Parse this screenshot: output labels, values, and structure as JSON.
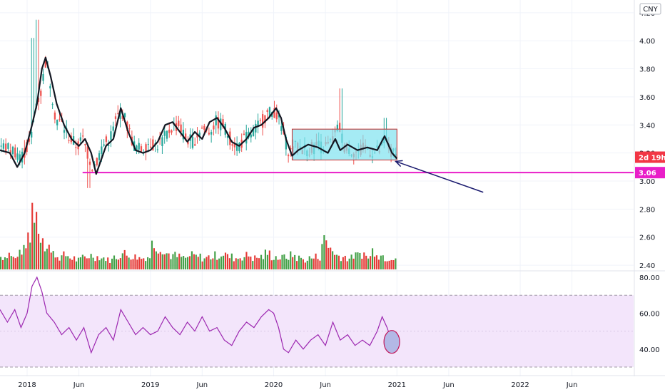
{
  "chart_data": [
    {
      "type": "candlestick",
      "currency": "CNY",
      "ylim": [
        2.38,
        4.25
      ],
      "yticks": [
        {
          "value": 4.2,
          "label": "4.20"
        },
        {
          "value": 4.0,
          "label": "4.00"
        },
        {
          "value": 3.8,
          "label": "3.80"
        },
        {
          "value": 3.6,
          "label": "3.60"
        },
        {
          "value": 3.4,
          "label": "3.40"
        },
        {
          "value": 3.2,
          "label": "3.20"
        },
        {
          "value": 3.0,
          "label": "3.00"
        },
        {
          "value": 2.8,
          "label": "2.80"
        },
        {
          "value": 2.6,
          "label": "2.60"
        },
        {
          "value": 2.4,
          "label": "2.40"
        }
      ],
      "xlim": [
        2017.78,
        2022.92
      ],
      "xticks": [
        {
          "value": 2018.0,
          "label": "2018"
        },
        {
          "value": 2018.42,
          "label": "Jun"
        },
        {
          "value": 2019.0,
          "label": "2019"
        },
        {
          "value": 2019.42,
          "label": "Jun"
        },
        {
          "value": 2020.0,
          "label": "2020"
        },
        {
          "value": 2020.42,
          "label": "Jun"
        },
        {
          "value": 2021.0,
          "label": "2021"
        },
        {
          "value": 2021.42,
          "label": "Jun"
        },
        {
          "value": 2022.0,
          "label": "2022"
        },
        {
          "value": 2022.42,
          "label": "Jun"
        }
      ],
      "price_path": [
        [
          2017.78,
          3.25
        ],
        [
          2017.88,
          3.22
        ],
        [
          2017.95,
          3.18
        ],
        [
          2018.02,
          3.28
        ],
        [
          2018.06,
          3.55
        ],
        [
          2018.1,
          3.62
        ],
        [
          2018.14,
          3.85
        ],
        [
          2018.18,
          3.7
        ],
        [
          2018.22,
          3.45
        ],
        [
          2018.28,
          3.4
        ],
        [
          2018.34,
          3.3
        ],
        [
          2018.4,
          3.25
        ],
        [
          2018.44,
          3.3
        ],
        [
          2018.48,
          3.2
        ],
        [
          2018.52,
          3.1
        ],
        [
          2018.56,
          3.15
        ],
        [
          2018.6,
          3.25
        ],
        [
          2018.66,
          3.3
        ],
        [
          2018.72,
          3.45
        ],
        [
          2018.76,
          3.5
        ],
        [
          2018.82,
          3.35
        ],
        [
          2018.86,
          3.25
        ],
        [
          2018.92,
          3.22
        ],
        [
          2018.98,
          3.28
        ],
        [
          2019.04,
          3.25
        ],
        [
          2019.1,
          3.3
        ],
        [
          2019.16,
          3.38
        ],
        [
          2019.22,
          3.4
        ],
        [
          2019.28,
          3.3
        ],
        [
          2019.34,
          3.28
        ],
        [
          2019.4,
          3.38
        ],
        [
          2019.46,
          3.35
        ],
        [
          2019.52,
          3.42
        ],
        [
          2019.58,
          3.4
        ],
        [
          2019.64,
          3.3
        ],
        [
          2019.7,
          3.25
        ],
        [
          2019.76,
          3.3
        ],
        [
          2019.82,
          3.35
        ],
        [
          2019.88,
          3.4
        ],
        [
          2019.94,
          3.48
        ],
        [
          2020.0,
          3.5
        ],
        [
          2020.04,
          3.42
        ],
        [
          2020.08,
          3.3
        ],
        [
          2020.12,
          3.2
        ],
        [
          2020.18,
          3.25
        ],
        [
          2020.26,
          3.22
        ],
        [
          2020.34,
          3.25
        ],
        [
          2020.42,
          3.24
        ],
        [
          2020.48,
          3.3
        ],
        [
          2020.52,
          3.4
        ],
        [
          2020.56,
          3.25
        ],
        [
          2020.62,
          3.22
        ],
        [
          2020.68,
          3.2
        ],
        [
          2020.74,
          3.24
        ],
        [
          2020.8,
          3.2
        ],
        [
          2020.86,
          3.22
        ],
        [
          2020.9,
          3.3
        ],
        [
          2020.94,
          3.2
        ],
        [
          2020.98,
          3.18
        ]
      ],
      "ma_line": [
        [
          2017.78,
          3.22
        ],
        [
          2017.86,
          3.2
        ],
        [
          2017.92,
          3.1
        ],
        [
          2017.98,
          3.2
        ],
        [
          2018.04,
          3.4
        ],
        [
          2018.08,
          3.55
        ],
        [
          2018.12,
          3.8
        ],
        [
          2018.15,
          3.88
        ],
        [
          2018.19,
          3.75
        ],
        [
          2018.24,
          3.55
        ],
        [
          2018.3,
          3.4
        ],
        [
          2018.36,
          3.3
        ],
        [
          2018.42,
          3.25
        ],
        [
          2018.47,
          3.3
        ],
        [
          2018.52,
          3.2
        ],
        [
          2018.56,
          3.05
        ],
        [
          2018.6,
          3.15
        ],
        [
          2018.64,
          3.25
        ],
        [
          2018.7,
          3.3
        ],
        [
          2018.76,
          3.52
        ],
        [
          2018.82,
          3.35
        ],
        [
          2018.88,
          3.22
        ],
        [
          2018.94,
          3.2
        ],
        [
          2019.0,
          3.22
        ],
        [
          2019.06,
          3.28
        ],
        [
          2019.12,
          3.4
        ],
        [
          2019.18,
          3.42
        ],
        [
          2019.24,
          3.35
        ],
        [
          2019.3,
          3.28
        ],
        [
          2019.36,
          3.35
        ],
        [
          2019.42,
          3.3
        ],
        [
          2019.48,
          3.42
        ],
        [
          2019.54,
          3.45
        ],
        [
          2019.6,
          3.38
        ],
        [
          2019.66,
          3.28
        ],
        [
          2019.72,
          3.25
        ],
        [
          2019.78,
          3.3
        ],
        [
          2019.84,
          3.38
        ],
        [
          2019.9,
          3.4
        ],
        [
          2019.96,
          3.45
        ],
        [
          2020.02,
          3.52
        ],
        [
          2020.06,
          3.45
        ],
        [
          2020.1,
          3.3
        ],
        [
          2020.15,
          3.18
        ],
        [
          2020.2,
          3.22
        ],
        [
          2020.28,
          3.26
        ],
        [
          2020.36,
          3.24
        ],
        [
          2020.44,
          3.2
        ],
        [
          2020.5,
          3.3
        ],
        [
          2020.54,
          3.22
        ],
        [
          2020.6,
          3.26
        ],
        [
          2020.68,
          3.22
        ],
        [
          2020.76,
          3.24
        ],
        [
          2020.84,
          3.22
        ],
        [
          2020.9,
          3.32
        ],
        [
          2020.96,
          3.2
        ],
        [
          2021.0,
          3.16
        ]
      ],
      "volume": [
        0.2,
        0.25,
        0.18,
        0.3,
        0.45,
        0.95,
        0.55,
        0.4,
        0.25,
        0.2,
        0.22,
        0.18,
        0.15,
        0.2,
        0.22,
        0.2,
        0.18,
        0.15,
        0.2,
        0.25,
        0.22,
        0.2,
        0.18,
        0.2,
        0.4,
        0.35,
        0.25,
        0.22,
        0.2,
        0.18,
        0.22,
        0.2,
        0.18,
        0.2,
        0.22,
        0.25,
        0.2,
        0.18,
        0.2,
        0.22,
        0.18,
        0.2,
        0.25,
        0.2,
        0.18,
        0.2,
        0.22,
        0.18,
        0.15,
        0.18,
        0.2,
        0.45,
        0.35,
        0.22,
        0.2,
        0.18,
        0.22,
        0.25,
        0.2,
        0.3,
        0.22,
        0.18,
        0.2
      ],
      "current_price": {
        "value": 3.06,
        "label": "3.06"
      },
      "countdown": {
        "value": 3.17,
        "label": "2d 19h"
      },
      "support_line": {
        "value": 3.06,
        "from_x": 2018.45,
        "to_x": 2022.92
      },
      "range_box": {
        "x0": 2020.15,
        "x1": 2021.0,
        "y0": 3.15,
        "y1": 3.37
      },
      "arrow": {
        "from": [
          2021.7,
          2.92
        ],
        "to": [
          2020.99,
          3.14
        ]
      }
    },
    {
      "type": "line",
      "indicator": "RSI",
      "ylim": [
        28,
        82
      ],
      "yticks": [
        {
          "value": 80,
          "label": "80.00"
        },
        {
          "value": 60,
          "label": "60.00"
        },
        {
          "value": 40,
          "label": "40.00"
        }
      ],
      "band": [
        30,
        70
      ],
      "values": [
        [
          2017.78,
          62
        ],
        [
          2017.84,
          55
        ],
        [
          2017.9,
          62
        ],
        [
          2017.95,
          52
        ],
        [
          2018.0,
          60
        ],
        [
          2018.04,
          75
        ],
        [
          2018.08,
          80
        ],
        [
          2018.12,
          72
        ],
        [
          2018.16,
          60
        ],
        [
          2018.22,
          55
        ],
        [
          2018.28,
          48
        ],
        [
          2018.34,
          52
        ],
        [
          2018.4,
          45
        ],
        [
          2018.46,
          52
        ],
        [
          2018.52,
          38
        ],
        [
          2018.58,
          48
        ],
        [
          2018.64,
          52
        ],
        [
          2018.7,
          45
        ],
        [
          2018.76,
          62
        ],
        [
          2018.82,
          55
        ],
        [
          2018.88,
          48
        ],
        [
          2018.94,
          52
        ],
        [
          2019.0,
          48
        ],
        [
          2019.06,
          50
        ],
        [
          2019.12,
          58
        ],
        [
          2019.18,
          52
        ],
        [
          2019.24,
          48
        ],
        [
          2019.3,
          55
        ],
        [
          2019.36,
          50
        ],
        [
          2019.42,
          58
        ],
        [
          2019.48,
          50
        ],
        [
          2019.54,
          52
        ],
        [
          2019.6,
          45
        ],
        [
          2019.66,
          42
        ],
        [
          2019.72,
          50
        ],
        [
          2019.78,
          55
        ],
        [
          2019.84,
          52
        ],
        [
          2019.9,
          58
        ],
        [
          2019.96,
          62
        ],
        [
          2020.0,
          60
        ],
        [
          2020.04,
          52
        ],
        [
          2020.08,
          40
        ],
        [
          2020.12,
          38
        ],
        [
          2020.18,
          45
        ],
        [
          2020.24,
          40
        ],
        [
          2020.3,
          45
        ],
        [
          2020.36,
          48
        ],
        [
          2020.42,
          42
        ],
        [
          2020.48,
          55
        ],
        [
          2020.54,
          45
        ],
        [
          2020.6,
          48
        ],
        [
          2020.66,
          42
        ],
        [
          2020.72,
          45
        ],
        [
          2020.78,
          42
        ],
        [
          2020.84,
          50
        ],
        [
          2020.88,
          58
        ],
        [
          2020.92,
          52
        ],
        [
          2020.96,
          44
        ],
        [
          2021.0,
          42
        ]
      ],
      "highlight": {
        "x": 2020.97,
        "y": 44
      }
    }
  ],
  "colors": {
    "up": "#26a69a",
    "down": "#ef5350",
    "volume_up": "#43a047",
    "volume_down": "#e53935",
    "ma_line": "#131722",
    "support": "#e91ec8",
    "price_tag": "#e91ec8",
    "countdown_tag": "#f23645",
    "range_box_fill": "#7fe3ef",
    "range_box_stroke": "#c62828",
    "arrow": "#1a1a6e",
    "rsi_line": "#9c27b0",
    "rsi_band": "#f3e5fb",
    "highlight_fill": "#b3b8e6",
    "highlight_stroke": "#c2185b",
    "grid": "#f0f3fa",
    "axis_text": "#131722"
  }
}
